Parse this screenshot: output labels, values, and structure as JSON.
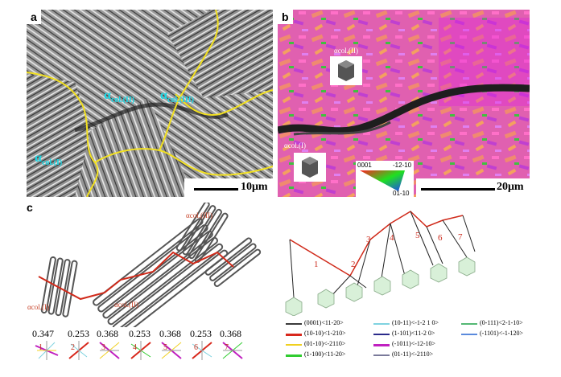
{
  "panel_a": {
    "label": "a",
    "scale": "10μm",
    "colonies": [
      {
        "sym": "α",
        "sub": "col.(I)"
      },
      {
        "sym": "α",
        "sub": "col.(II)"
      },
      {
        "sym": "α",
        "sub": "col.(III)"
      }
    ]
  },
  "panel_b": {
    "label": "b",
    "scale": "20μm",
    "colonies": [
      "αcol.(I)",
      "αcol.(II)"
    ],
    "ipf": {
      "top_left": "0001",
      "top_right": "-12-10",
      "bottom": "01-10"
    }
  },
  "panel_c": {
    "label": "c",
    "colonies": [
      "αcol.(I)",
      "αcol.(II)",
      "αcol.(III)"
    ],
    "variant_numbers": [
      "1",
      "2",
      "3",
      "4",
      "5",
      "6",
      "7"
    ],
    "schmid_factors": [
      "0.347",
      "0.253",
      "0.368",
      "0.253",
      "0.368",
      "0.253",
      "0.368"
    ],
    "step_numbers": [
      "1",
      "2",
      "3",
      "4",
      "5",
      "6",
      "7"
    ],
    "legend": [
      {
        "text": "(0001)<11-20>",
        "color": "#3a3a3a"
      },
      {
        "text": "(10-11)<-1-2 1 0>",
        "color": "#7fd3e0"
      },
      {
        "text": "(0-111)<2-1-10>",
        "color": "#54b874"
      },
      {
        "text": "(10-10)<1-210>",
        "color": "#d8281c"
      },
      {
        "text": "(1-101)<11-2 0>",
        "color": "#2a2a8a"
      },
      {
        "text": "(-1101)<-1-120>",
        "color": "#5a8adc"
      },
      {
        "text": "(01-10)<-2110>",
        "color": "#f0d020"
      },
      {
        "text": "(-1011)<-12-10>",
        "color": "#c020c0"
      },
      {
        "text": "(1-100)<11-20>",
        "color": "#30cc30"
      },
      {
        "text": "(01-11)<-2110>",
        "color": "#7a7a9a"
      }
    ]
  }
}
